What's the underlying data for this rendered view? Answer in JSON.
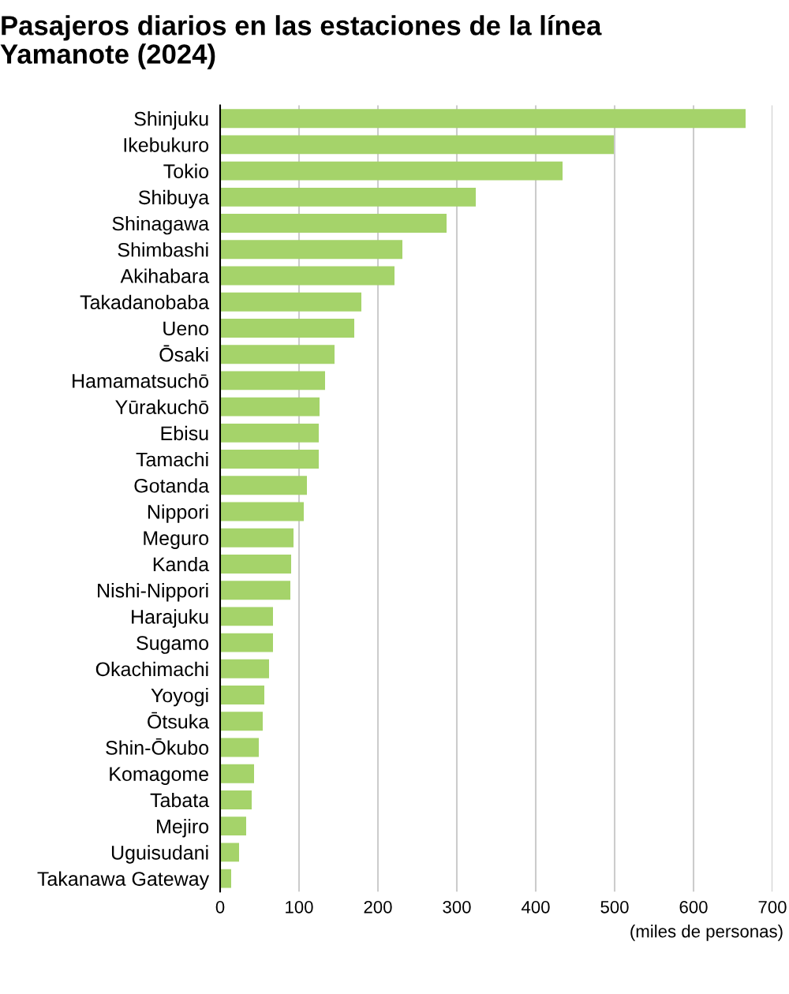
{
  "chart_data": {
    "type": "bar",
    "orientation": "horizontal",
    "title": "Pasajeros diarios en las estaciones de la línea\nYamanote (2024)",
    "xlabel": "(miles de personas)",
    "categories": [
      "Shinjuku",
      "Ikebukuro",
      "Tokio",
      "Shibuya",
      "Shinagawa",
      "Shimbashi",
      "Akihabara",
      "Takadanobaba",
      "Ueno",
      "Ōsaki",
      "Hamamatsuchō",
      "Yūrakuchō",
      "Ebisu",
      "Tamachi",
      "Gotanda",
      "Nippori",
      "Meguro",
      "Kanda",
      "Nishi-Nippori",
      "Harajuku",
      "Sugamo",
      "Okachimachi",
      "Yoyogi",
      "Ōtsuka",
      "Shin-Ōkubo",
      "Komagome",
      "Tabata",
      "Mejiro",
      "Uguisudani",
      "Takanawa Gateway"
    ],
    "values": [
      666,
      499,
      434,
      324,
      287,
      231,
      221,
      179,
      170,
      145,
      133,
      126,
      125,
      125,
      110,
      106,
      93,
      90,
      89,
      67,
      67,
      62,
      56,
      54,
      49,
      43,
      40,
      33,
      24,
      14
    ],
    "color": "#a5d36a",
    "xlim": [
      0,
      700
    ],
    "xticks": [
      0,
      100,
      200,
      300,
      400,
      500,
      600,
      700
    ],
    "grid": "x",
    "legend": false
  }
}
